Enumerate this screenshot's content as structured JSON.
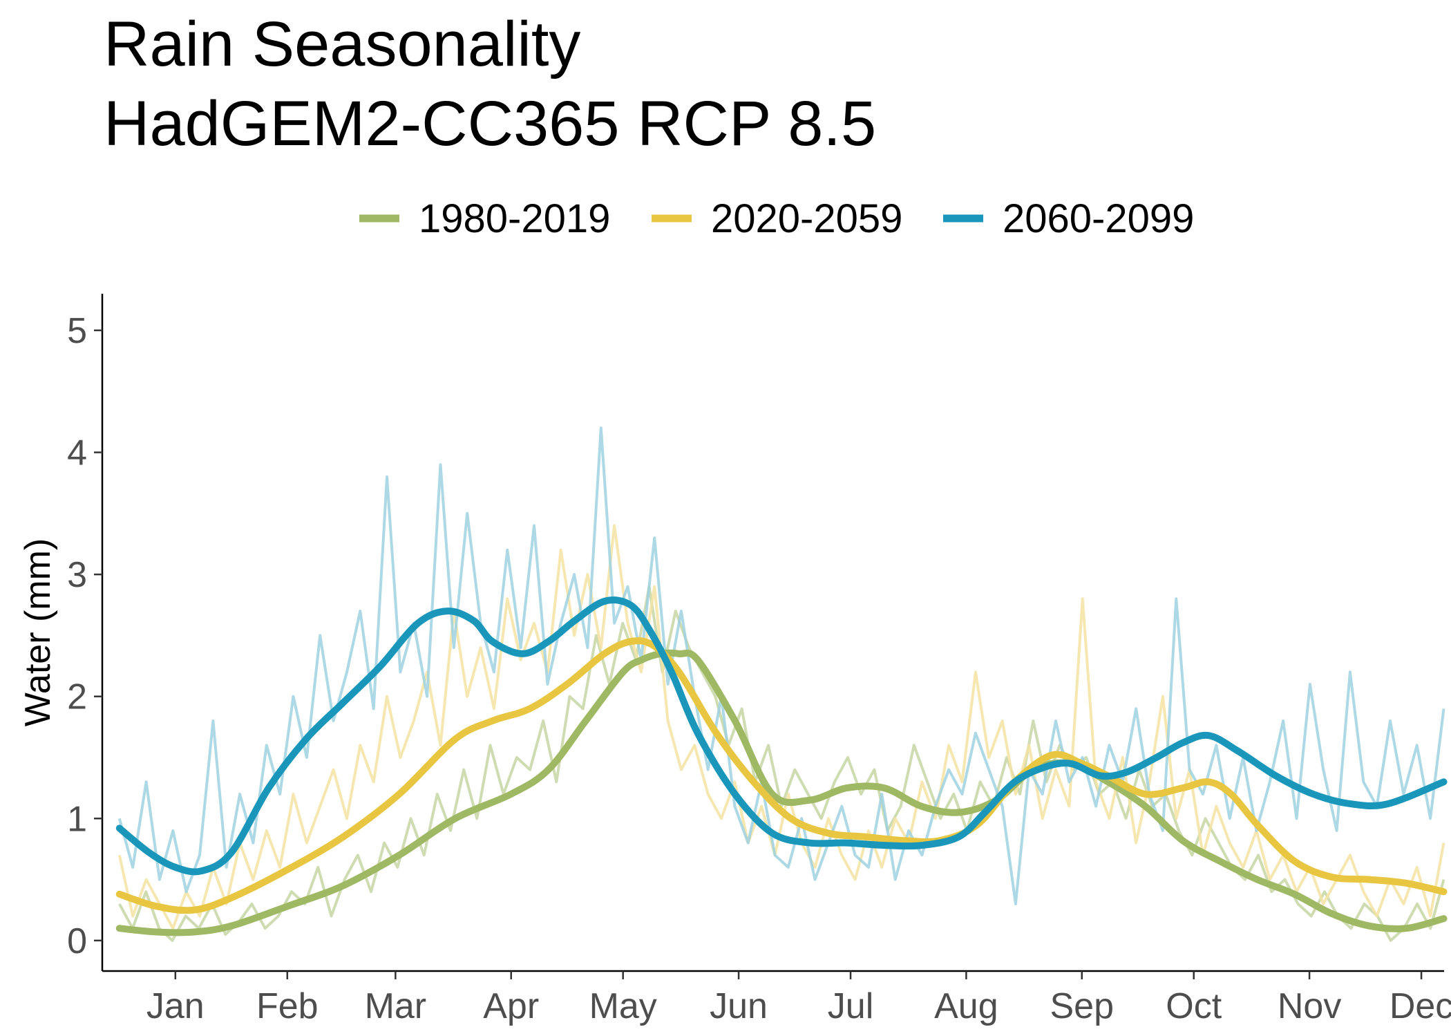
{
  "chart_data": {
    "type": "line",
    "title": [
      "Rain Seasonality",
      "HadGEM2-CC365 RCP 8.5"
    ],
    "xlabel": "",
    "ylabel": "Water (mm)",
    "ylim": [
      -0.25,
      5.3
    ],
    "yticks": [
      0,
      1,
      2,
      3,
      4,
      5
    ],
    "xlim": [
      -4.6,
      355.1
    ],
    "xticks": [
      {
        "label": "Jan",
        "day": 15
      },
      {
        "label": "Feb",
        "day": 45
      },
      {
        "label": "Mar",
        "day": 74
      },
      {
        "label": "Apr",
        "day": 105
      },
      {
        "label": "May",
        "day": 135
      },
      {
        "label": "Jun",
        "day": 166
      },
      {
        "label": "Jul",
        "day": 196
      },
      {
        "label": "Aug",
        "day": 227
      },
      {
        "label": "Sep",
        "day": 258
      },
      {
        "label": "Oct",
        "day": 288
      },
      {
        "label": "Nov",
        "day": 319
      },
      {
        "label": "Dec",
        "day": 349
      }
    ],
    "grid": false,
    "legend_position": "top",
    "series": [
      {
        "name": "1980-2019",
        "color": "#9FB863",
        "raw_color": "#c7d6a4",
        "smooth_days": [
          0,
          10,
          20,
          30,
          45,
          60,
          75,
          90,
          105,
          115,
          125,
          135,
          140,
          145,
          150,
          155,
          165,
          175,
          185,
          195,
          205,
          215,
          225,
          235,
          245,
          255,
          265,
          275,
          285,
          295,
          305,
          315,
          325,
          335,
          345,
          355
        ],
        "smooth_values": [
          0.1,
          0.07,
          0.07,
          0.12,
          0.28,
          0.45,
          0.7,
          1.0,
          1.2,
          1.4,
          1.8,
          2.2,
          2.3,
          2.35,
          2.35,
          2.3,
          1.8,
          1.2,
          1.15,
          1.25,
          1.25,
          1.1,
          1.05,
          1.15,
          1.4,
          1.45,
          1.3,
          1.1,
          0.82,
          0.65,
          0.5,
          0.38,
          0.22,
          0.12,
          0.1,
          0.18
        ],
        "raw_values": [
          0.3,
          0.1,
          0.4,
          0.1,
          0.0,
          0.2,
          0.1,
          0.3,
          0.05,
          0.15,
          0.3,
          0.1,
          0.2,
          0.4,
          0.3,
          0.6,
          0.2,
          0.5,
          0.7,
          0.4,
          0.8,
          0.6,
          1.0,
          0.7,
          1.2,
          0.9,
          1.4,
          1.0,
          1.6,
          1.2,
          1.5,
          1.4,
          1.8,
          1.3,
          2.0,
          1.9,
          2.5,
          2.1,
          2.6,
          2.3,
          2.9,
          2.2,
          2.7,
          2.4,
          2.2,
          2.0,
          1.6,
          1.9,
          1.3,
          1.6,
          1.1,
          1.4,
          1.2,
          1.0,
          1.3,
          1.5,
          1.2,
          1.4,
          0.9,
          1.1,
          1.6,
          1.3,
          1.0,
          1.2,
          0.9,
          1.3,
          1.1,
          1.5,
          1.2,
          1.8,
          1.3,
          1.6,
          1.4,
          1.5,
          1.2,
          1.3,
          1.0,
          1.4,
          1.1,
          1.2,
          0.9,
          0.7,
          1.0,
          0.8,
          0.6,
          0.5,
          0.7,
          0.4,
          0.5,
          0.3,
          0.2,
          0.4,
          0.2,
          0.1,
          0.3,
          0.2,
          0.0,
          0.1,
          0.3,
          0.1,
          0.5
        ]
      },
      {
        "name": "2020-2059",
        "color": "#E8C642",
        "raw_color": "#f5e3a3",
        "smooth_days": [
          0,
          10,
          20,
          30,
          45,
          60,
          75,
          90,
          100,
          110,
          120,
          130,
          137,
          143,
          150,
          160,
          170,
          180,
          190,
          200,
          210,
          220,
          230,
          240,
          250,
          258,
          265,
          275,
          285,
          292,
          298,
          305,
          315,
          325,
          335,
          345,
          355
        ],
        "smooth_values": [
          0.38,
          0.28,
          0.25,
          0.35,
          0.58,
          0.85,
          1.2,
          1.65,
          1.8,
          1.9,
          2.1,
          2.35,
          2.45,
          2.42,
          2.2,
          1.7,
          1.3,
          1.0,
          0.88,
          0.85,
          0.82,
          0.82,
          0.95,
          1.3,
          1.52,
          1.45,
          1.35,
          1.2,
          1.25,
          1.3,
          1.2,
          0.95,
          0.65,
          0.52,
          0.5,
          0.47,
          0.4
        ],
        "raw_values": [
          0.7,
          0.2,
          0.5,
          0.3,
          0.1,
          0.4,
          0.2,
          0.6,
          0.3,
          0.8,
          0.5,
          0.9,
          0.6,
          1.2,
          0.8,
          1.1,
          1.4,
          1.0,
          1.6,
          1.3,
          2.0,
          1.5,
          1.8,
          2.2,
          1.6,
          2.7,
          2.0,
          2.4,
          1.9,
          2.8,
          2.3,
          2.6,
          2.2,
          3.2,
          2.5,
          3.0,
          2.4,
          3.4,
          2.6,
          2.2,
          2.9,
          1.8,
          1.4,
          1.6,
          1.2,
          1.0,
          1.3,
          0.8,
          1.1,
          0.7,
          1.2,
          0.8,
          0.6,
          1.0,
          0.7,
          0.5,
          0.9,
          0.6,
          1.0,
          0.8,
          1.3,
          1.0,
          1.6,
          1.3,
          2.2,
          1.5,
          1.8,
          1.2,
          1.6,
          1.0,
          1.4,
          1.1,
          2.8,
          1.3,
          1.0,
          1.5,
          0.8,
          1.3,
          2.0,
          1.0,
          1.4,
          0.7,
          1.1,
          0.8,
          0.6,
          0.9,
          0.5,
          0.7,
          0.4,
          0.6,
          0.3,
          0.5,
          0.7,
          0.4,
          0.2,
          0.5,
          0.3,
          0.6,
          0.2,
          0.8
        ]
      },
      {
        "name": "2060-2099",
        "color": "#1A96BA",
        "raw_color": "#9fd1e0",
        "smooth_days": [
          0,
          8,
          15,
          22,
          30,
          40,
          50,
          60,
          70,
          80,
          88,
          95,
          100,
          108,
          115,
          122,
          130,
          137,
          142,
          148,
          155,
          165,
          175,
          185,
          195,
          205,
          215,
          225,
          232,
          240,
          248,
          255,
          263,
          270,
          278,
          285,
          292,
          300,
          310,
          320,
          330,
          340,
          355
        ],
        "smooth_values": [
          0.92,
          0.72,
          0.6,
          0.57,
          0.72,
          1.25,
          1.65,
          1.95,
          2.25,
          2.6,
          2.7,
          2.62,
          2.45,
          2.35,
          2.45,
          2.62,
          2.78,
          2.75,
          2.55,
          2.2,
          1.7,
          1.2,
          0.88,
          0.8,
          0.8,
          0.78,
          0.78,
          0.85,
          1.05,
          1.3,
          1.42,
          1.45,
          1.35,
          1.38,
          1.5,
          1.62,
          1.68,
          1.55,
          1.35,
          1.2,
          1.12,
          1.12,
          1.3
        ],
        "raw_values": [
          1.0,
          0.6,
          1.3,
          0.5,
          0.9,
          0.4,
          0.7,
          1.8,
          0.6,
          1.2,
          0.8,
          1.6,
          1.2,
          2.0,
          1.5,
          2.5,
          1.8,
          2.2,
          2.7,
          1.9,
          3.8,
          2.2,
          2.6,
          2.0,
          3.9,
          2.4,
          3.5,
          2.6,
          2.2,
          3.2,
          2.4,
          3.4,
          2.1,
          2.6,
          3.0,
          2.4,
          4.2,
          2.6,
          2.9,
          2.3,
          3.3,
          2.1,
          2.7,
          2.0,
          1.4,
          2.0,
          1.1,
          0.8,
          1.3,
          0.7,
          0.6,
          1.0,
          0.5,
          0.8,
          1.1,
          0.7,
          0.6,
          1.2,
          0.5,
          0.9,
          0.7,
          1.1,
          1.4,
          1.2,
          1.7,
          1.4,
          1.1,
          0.3,
          1.4,
          1.2,
          1.8,
          1.3,
          1.5,
          1.1,
          1.6,
          1.3,
          1.9,
          1.2,
          0.9,
          2.8,
          1.4,
          1.2,
          1.6,
          1.0,
          1.5,
          0.9,
          1.3,
          1.8,
          1.0,
          2.1,
          1.4,
          0.9,
          2.2,
          1.3,
          1.1,
          1.8,
          1.2,
          1.6,
          1.0,
          1.9
        ]
      }
    ]
  }
}
